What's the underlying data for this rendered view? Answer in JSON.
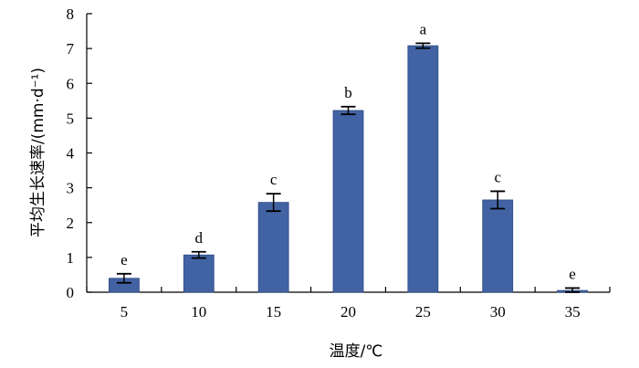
{
  "chart_data": {
    "type": "bar",
    "categories": [
      "5",
      "10",
      "15",
      "20",
      "25",
      "30",
      "35"
    ],
    "values": [
      0.4,
      1.07,
      2.58,
      5.22,
      7.08,
      2.65,
      0.05
    ],
    "errors": [
      0.13,
      0.09,
      0.25,
      0.11,
      0.07,
      0.25,
      0.07
    ],
    "letters": [
      "e",
      "d",
      "c",
      "b",
      "a",
      "c",
      "e"
    ],
    "xlabel": "温度/℃",
    "ylabel": "平均生长速率/(mm·d⁻¹)",
    "ylim": [
      0,
      8
    ],
    "yticks": [
      "0",
      "1",
      "2",
      "3",
      "4",
      "5",
      "6",
      "7",
      "8"
    ],
    "grid": false,
    "legend": "none",
    "bar_color": "#4263a3",
    "bar_edge_color": "#2d4a86"
  }
}
